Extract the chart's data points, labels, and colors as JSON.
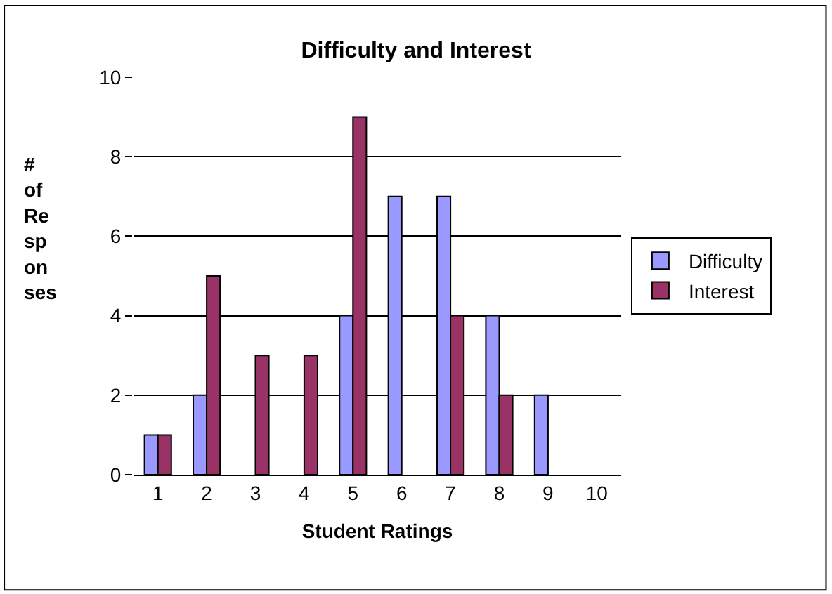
{
  "chart_data": {
    "type": "bar",
    "title": "Difficulty and Interest",
    "xlabel": "Student Ratings",
    "ylabel": "# of Re sp on ses",
    "categories": [
      "1",
      "2",
      "3",
      "4",
      "5",
      "6",
      "7",
      "8",
      "9",
      "10"
    ],
    "series": [
      {
        "name": "Difficulty",
        "color": "#9999ff",
        "values": [
          1,
          2,
          null,
          null,
          4,
          7,
          7,
          4,
          2,
          null
        ]
      },
      {
        "name": "Interest",
        "color": "#993366",
        "values": [
          1,
          5,
          3,
          3,
          9,
          null,
          4,
          2,
          null,
          null
        ]
      }
    ],
    "ylim": [
      0,
      10
    ],
    "yticks": [
      0,
      2,
      4,
      6,
      8,
      10
    ],
    "grid": "y",
    "legend": "right"
  }
}
